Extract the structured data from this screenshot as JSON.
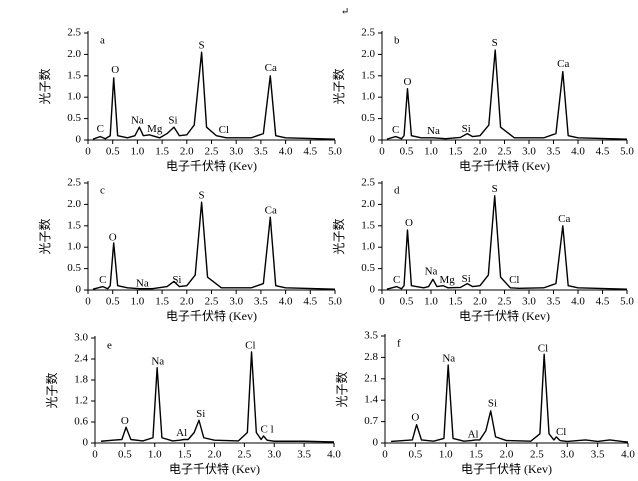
{
  "page_mark": "↵",
  "chart_data": [
    {
      "type": "line",
      "label": "a",
      "xlabel": "电子千伏特 (Kev)",
      "ylabel": "光子数",
      "color": "#000000",
      "xlim": [
        0,
        5
      ],
      "ylim": [
        0,
        2.5
      ],
      "xticks": [
        0,
        0.5,
        {
          "value": 1,
          "label": "1.0"
        },
        1.5,
        {
          "value": 2,
          "label": "2.0"
        },
        2.5,
        {
          "value": 3,
          "label": "3.0"
        },
        3.5,
        {
          "value": 4,
          "label": "4.0"
        },
        4.5,
        {
          "value": 5,
          "label": "5.0"
        }
      ],
      "yticks": [
        0,
        0.5,
        {
          "value": 1,
          "label": "1.0"
        },
        1.5,
        {
          "value": 2,
          "label": "2.0"
        },
        2.5
      ],
      "series": [
        {
          "x": [
            0.1,
            0.25,
            0.35,
            0.45,
            0.52,
            0.6,
            0.8,
            0.95,
            1.04,
            1.12,
            1.25,
            1.3,
            1.45,
            1.6,
            1.74,
            1.85,
            2.0,
            2.15,
            2.3,
            2.4,
            2.6,
            2.8,
            3.3,
            3.55,
            3.69,
            3.8,
            4.0,
            5.0
          ],
          "values": [
            0.02,
            0.08,
            0.03,
            0.1,
            1.45,
            0.1,
            0.05,
            0.1,
            0.3,
            0.1,
            0.12,
            0.1,
            0.05,
            0.15,
            0.3,
            0.1,
            0.12,
            0.35,
            2.05,
            0.3,
            0.1,
            0.05,
            0.05,
            0.15,
            1.5,
            0.1,
            0.05,
            0.02
          ]
        }
      ],
      "annotations": [
        {
          "text": "C",
          "x": 0.25,
          "y": 0.25
        },
        {
          "text": "O",
          "x": 0.55,
          "y": 1.62
        },
        {
          "text": "Na",
          "x": 1.0,
          "y": 0.45
        },
        {
          "text": "Mg",
          "x": 1.35,
          "y": 0.25
        },
        {
          "text": "Si",
          "x": 1.72,
          "y": 0.45
        },
        {
          "text": "S",
          "x": 2.3,
          "y": 2.2
        },
        {
          "text": "Cl",
          "x": 2.75,
          "y": 0.22
        },
        {
          "text": "Ca",
          "x": 3.7,
          "y": 1.67
        }
      ]
    },
    {
      "type": "line",
      "label": "b",
      "xlabel": "电子千伏特 (Kev)",
      "ylabel": "光子数",
      "color": "#000000",
      "xlim": [
        0,
        5
      ],
      "ylim": [
        0,
        2.5
      ],
      "xticks": [
        0,
        0.5,
        {
          "value": 1,
          "label": "1.0"
        },
        1.5,
        {
          "value": 2,
          "label": "2.0"
        },
        2.5,
        {
          "value": 3,
          "label": "3.0"
        },
        3.5,
        {
          "value": 4,
          "label": "4.0"
        },
        4.5,
        {
          "value": 5,
          "label": "5.0"
        }
      ],
      "yticks": [
        0,
        0.5,
        {
          "value": 1,
          "label": "1.0"
        },
        1.5,
        {
          "value": 2,
          "label": "2.0"
        },
        2.5
      ],
      "series": [
        {
          "x": [
            0.1,
            0.28,
            0.4,
            0.45,
            0.52,
            0.6,
            0.8,
            1.04,
            1.3,
            1.6,
            1.74,
            1.85,
            2.0,
            2.18,
            2.31,
            2.42,
            2.7,
            3.3,
            3.55,
            3.69,
            3.8,
            4.0,
            5.0
          ],
          "values": [
            0.02,
            0.08,
            0.03,
            0.1,
            1.2,
            0.1,
            0.05,
            0.05,
            0.03,
            0.06,
            0.15,
            0.08,
            0.1,
            0.35,
            2.1,
            0.3,
            0.05,
            0.05,
            0.15,
            1.6,
            0.1,
            0.05,
            0.02
          ]
        }
      ],
      "annotations": [
        {
          "text": "C",
          "x": 0.28,
          "y": 0.22
        },
        {
          "text": "O",
          "x": 0.52,
          "y": 1.35
        },
        {
          "text": "Na",
          "x": 1.05,
          "y": 0.2
        },
        {
          "text": "Si",
          "x": 1.72,
          "y": 0.25
        },
        {
          "text": "S",
          "x": 2.3,
          "y": 2.25
        },
        {
          "text": "Ca",
          "x": 3.7,
          "y": 1.77
        }
      ]
    },
    {
      "type": "line",
      "label": "c",
      "xlabel": "电子千伏特 (Kev)",
      "ylabel": "光子数",
      "color": "#000000",
      "xlim": [
        0,
        5
      ],
      "ylim": [
        0,
        2.5
      ],
      "xticks": [
        0,
        0.5,
        {
          "value": 1,
          "label": "1.0"
        },
        1.5,
        {
          "value": 2,
          "label": "2.0"
        },
        2.5,
        {
          "value": 3,
          "label": "3.0"
        },
        3.5,
        {
          "value": 4,
          "label": "4.0"
        },
        4.5,
        {
          "value": 5,
          "label": "5.0"
        }
      ],
      "yticks": [
        0,
        0.5,
        {
          "value": 1,
          "label": "1.0"
        },
        1.5,
        {
          "value": 2,
          "label": "2.0"
        },
        2.5
      ],
      "series": [
        {
          "x": [
            0.1,
            0.3,
            0.4,
            0.45,
            0.52,
            0.6,
            0.8,
            1.04,
            1.3,
            1.6,
            1.74,
            1.85,
            2.0,
            2.17,
            2.3,
            2.42,
            2.7,
            3.3,
            3.55,
            3.69,
            3.8,
            4.0,
            5.0
          ],
          "values": [
            0.02,
            0.08,
            0.03,
            0.1,
            1.1,
            0.1,
            0.05,
            0.03,
            0.03,
            0.08,
            0.2,
            0.08,
            0.1,
            0.35,
            2.05,
            0.3,
            0.05,
            0.05,
            0.15,
            1.7,
            0.1,
            0.05,
            0.02
          ]
        }
      ],
      "annotations": [
        {
          "text": "C",
          "x": 0.3,
          "y": 0.22
        },
        {
          "text": "O",
          "x": 0.5,
          "y": 1.22
        },
        {
          "text": "Na",
          "x": 1.1,
          "y": 0.14
        },
        {
          "text": "Si",
          "x": 1.8,
          "y": 0.22
        },
        {
          "text": "S",
          "x": 2.3,
          "y": 2.2
        },
        {
          "text": "Ca",
          "x": 3.7,
          "y": 1.85
        }
      ]
    },
    {
      "type": "line",
      "label": "d",
      "xlabel": "电子千伏特 (Kev)",
      "ylabel": "光子数",
      "color": "#000000",
      "xlim": [
        0,
        5
      ],
      "ylim": [
        0,
        2.5
      ],
      "xticks": [
        0,
        0.5,
        {
          "value": 1,
          "label": "1.0"
        },
        1.5,
        {
          "value": 2,
          "label": "2.0"
        },
        2.5,
        {
          "value": 3,
          "label": "3.0"
        },
        3.5,
        {
          "value": 4,
          "label": "4.0"
        },
        4.5,
        {
          "value": 5,
          "label": "5.0"
        }
      ],
      "yticks": [
        0,
        0.5,
        {
          "value": 1,
          "label": "1.0"
        },
        1.5,
        {
          "value": 2,
          "label": "2.0"
        },
        2.5
      ],
      "series": [
        {
          "x": [
            0.1,
            0.3,
            0.4,
            0.45,
            0.52,
            0.6,
            0.85,
            0.95,
            1.04,
            1.12,
            1.25,
            1.35,
            1.6,
            1.74,
            1.85,
            2.0,
            2.17,
            2.3,
            2.42,
            2.62,
            2.8,
            3.3,
            3.55,
            3.69,
            3.8,
            4.0,
            5.0
          ],
          "values": [
            0.02,
            0.08,
            0.03,
            0.1,
            1.4,
            0.1,
            0.05,
            0.08,
            0.25,
            0.08,
            0.1,
            0.05,
            0.06,
            0.15,
            0.08,
            0.1,
            0.35,
            2.2,
            0.3,
            0.05,
            0.04,
            0.05,
            0.15,
            1.5,
            0.1,
            0.05,
            0.02
          ]
        }
      ],
      "annotations": [
        {
          "text": "C",
          "x": 0.3,
          "y": 0.22
        },
        {
          "text": "O",
          "x": 0.55,
          "y": 1.55
        },
        {
          "text": "Na",
          "x": 1.0,
          "y": 0.42
        },
        {
          "text": "Mg",
          "x": 1.33,
          "y": 0.22
        },
        {
          "text": "Si",
          "x": 1.72,
          "y": 0.25
        },
        {
          "text": "S",
          "x": 2.3,
          "y": 2.35
        },
        {
          "text": "Cl",
          "x": 2.7,
          "y": 0.22
        },
        {
          "text": "Ca",
          "x": 3.72,
          "y": 1.65
        }
      ]
    },
    {
      "type": "line",
      "label": "e",
      "xlabel": "电子千伏特 (Kev)",
      "ylabel": "光子数",
      "color": "#000000",
      "xlim": [
        0,
        4
      ],
      "ylim": [
        0,
        3
      ],
      "xticks": [
        0,
        0.5,
        {
          "value": 1,
          "label": "1.0"
        },
        1.5,
        {
          "value": 2,
          "label": "2.0"
        },
        2.5,
        {
          "value": 3,
          "label": "3.0"
        },
        3.5,
        {
          "value": 4,
          "label": "4.0"
        }
      ],
      "yticks": [
        0,
        0.6,
        1.2,
        1.8,
        2.4,
        {
          "value": 3,
          "label": "3.0"
        }
      ],
      "series": [
        {
          "x": [
            0.1,
            0.3,
            0.45,
            0.52,
            0.6,
            0.8,
            0.97,
            1.04,
            1.12,
            1.3,
            1.42,
            1.49,
            1.56,
            1.66,
            1.74,
            1.82,
            2.0,
            2.4,
            2.55,
            2.62,
            2.7,
            2.78,
            2.82,
            2.88,
            3.0,
            3.5,
            4.0
          ],
          "values": [
            0.05,
            0.08,
            0.1,
            0.45,
            0.1,
            0.06,
            0.15,
            2.15,
            0.15,
            0.06,
            0.08,
            0.1,
            0.1,
            0.3,
            0.65,
            0.15,
            0.08,
            0.06,
            0.3,
            2.6,
            0.3,
            0.1,
            0.2,
            0.08,
            0.05,
            0.05,
            0.03
          ]
        }
      ],
      "annotations": [
        {
          "text": "O",
          "x": 0.5,
          "y": 0.62
        },
        {
          "text": "Na",
          "x": 1.05,
          "y": 2.32
        },
        {
          "text": "Al",
          "x": 1.45,
          "y": 0.27
        },
        {
          "text": "Si",
          "x": 1.77,
          "y": 0.82
        },
        {
          "text": "Cl",
          "x": 2.6,
          "y": 2.77
        },
        {
          "text": "C l",
          "x": 2.88,
          "y": 0.37
        }
      ]
    },
    {
      "type": "line",
      "label": "f",
      "xlabel": "电子千伏特 (Kev)",
      "ylabel": "光子数",
      "color": "#000000",
      "xlim": [
        0,
        4
      ],
      "ylim": [
        0,
        3.5
      ],
      "xticks": [
        0,
        0.5,
        {
          "value": 1,
          "label": "1.0"
        },
        1.5,
        {
          "value": 2,
          "label": "2.0"
        },
        2.5,
        {
          "value": 3,
          "label": "3.0"
        },
        3.5,
        {
          "value": 4,
          "label": "4.0"
        }
      ],
      "yticks": [
        0,
        0.7,
        1.4,
        2.1,
        2.8,
        3.5
      ],
      "series": [
        {
          "x": [
            0.1,
            0.3,
            0.45,
            0.52,
            0.6,
            0.8,
            0.97,
            1.04,
            1.12,
            1.3,
            1.42,
            1.49,
            1.56,
            1.66,
            1.74,
            1.82,
            2.0,
            2.4,
            2.55,
            2.62,
            2.7,
            2.78,
            2.82,
            2.88,
            3.0,
            3.3,
            3.5,
            3.7,
            3.9,
            4.0
          ],
          "values": [
            0.05,
            0.08,
            0.1,
            0.6,
            0.1,
            0.06,
            0.15,
            2.55,
            0.15,
            0.06,
            0.08,
            0.1,
            0.1,
            0.4,
            1.05,
            0.2,
            0.08,
            0.06,
            0.3,
            2.9,
            0.3,
            0.1,
            0.2,
            0.08,
            0.05,
            0.1,
            0.05,
            0.1,
            0.05,
            0.03
          ]
        }
      ],
      "annotations": [
        {
          "text": "O",
          "x": 0.5,
          "y": 0.82
        },
        {
          "text": "Na",
          "x": 1.05,
          "y": 2.75
        },
        {
          "text": "Al",
          "x": 1.45,
          "y": 0.27
        },
        {
          "text": "Si",
          "x": 1.77,
          "y": 1.27
        },
        {
          "text": "Cl",
          "x": 2.6,
          "y": 3.07
        },
        {
          "text": "Cl",
          "x": 2.9,
          "y": 0.35
        }
      ]
    }
  ]
}
